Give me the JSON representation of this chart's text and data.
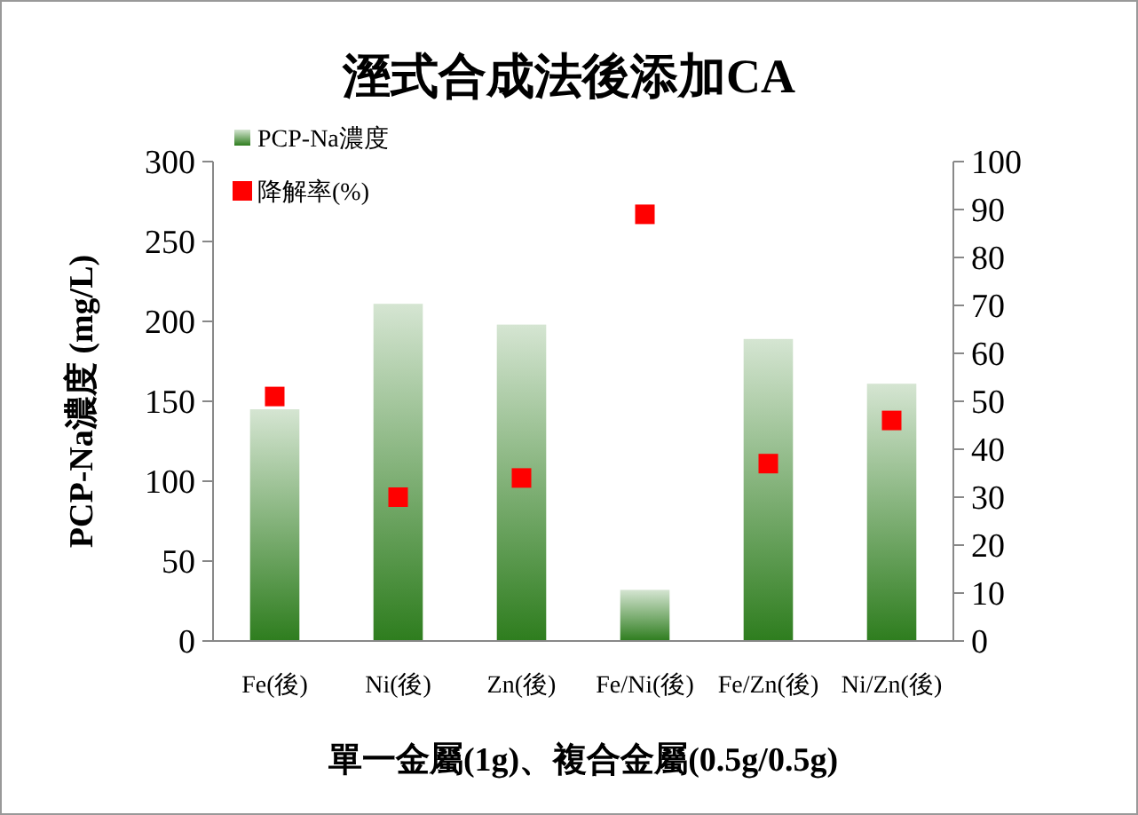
{
  "chart_data": {
    "type": "bar",
    "title": "溼式合成法後添加CA",
    "xlabel": "單一金屬(1g)、複合金屬(0.5g/0.5g)",
    "ylabel": "PCP-Na濃度 (mg/L)",
    "categories": [
      "Fe(後)",
      "Ni(後)",
      "Zn(後)",
      "Fe/Ni(後)",
      "Fe/Zn(後)",
      "Ni/Zn(後)"
    ],
    "series": [
      {
        "name": "PCP-Na濃度",
        "color": "#2e7d1e",
        "values": [
          145,
          211,
          198,
          32,
          189,
          161
        ]
      },
      {
        "name": "降解率(%)",
        "type": "scatter",
        "axis": "y2",
        "color": "#ff0000",
        "marker": "square",
        "values": [
          51,
          30,
          34,
          89,
          37,
          46
        ]
      }
    ],
    "ylim": [
      0,
      300
    ],
    "yticks": [
      0,
      50,
      100,
      150,
      200,
      250,
      300
    ],
    "y2lim": [
      0,
      100
    ],
    "y2ticks": [
      0,
      10,
      20,
      30,
      40,
      50,
      60,
      70,
      80,
      90,
      100
    ],
    "legend": "top left",
    "grid": false
  }
}
